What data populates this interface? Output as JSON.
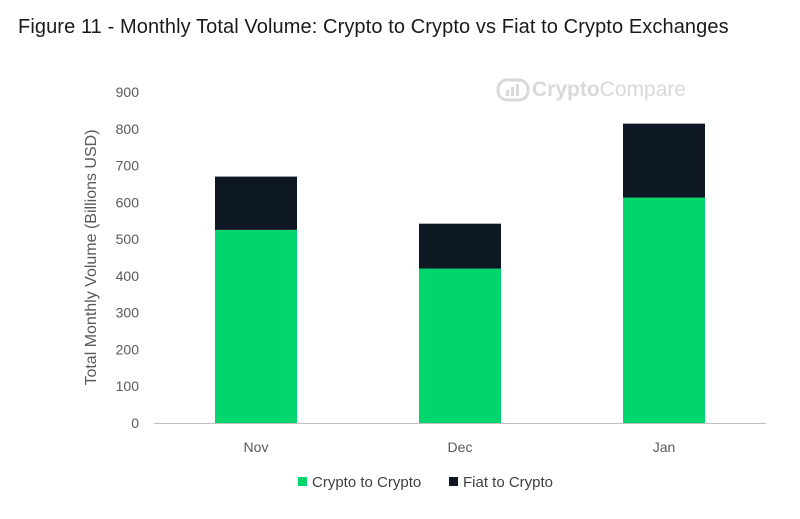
{
  "figure": {
    "title": "Figure 11 - Monthly Total Volume: Crypto to Crypto vs Fiat to Crypto Exchanges"
  },
  "watermark": {
    "text_part1": "Crypto",
    "text_part2": "Compare"
  },
  "colors": {
    "crypto_to_crypto": "#00d66c",
    "fiat_to_crypto": "#0e1825",
    "axis": "#bfbfbf",
    "watermark": "#d9d9d9"
  },
  "chart_data": {
    "type": "bar",
    "stacked": true,
    "categories": [
      "Nov",
      "Dec",
      "Jan"
    ],
    "series": [
      {
        "name": "Crypto to Crypto",
        "values": [
          525,
          420,
          613
        ]
      },
      {
        "name": "Fiat to Crypto",
        "values": [
          145,
          122,
          201
        ]
      }
    ],
    "xlabel": "",
    "ylabel": "Total Monthly Volume (Billions USD)",
    "ylim": [
      0,
      900
    ],
    "yticks": [
      0,
      100,
      200,
      300,
      400,
      500,
      600,
      700,
      800,
      900
    ],
    "grid": false,
    "legend_position": "bottom"
  }
}
